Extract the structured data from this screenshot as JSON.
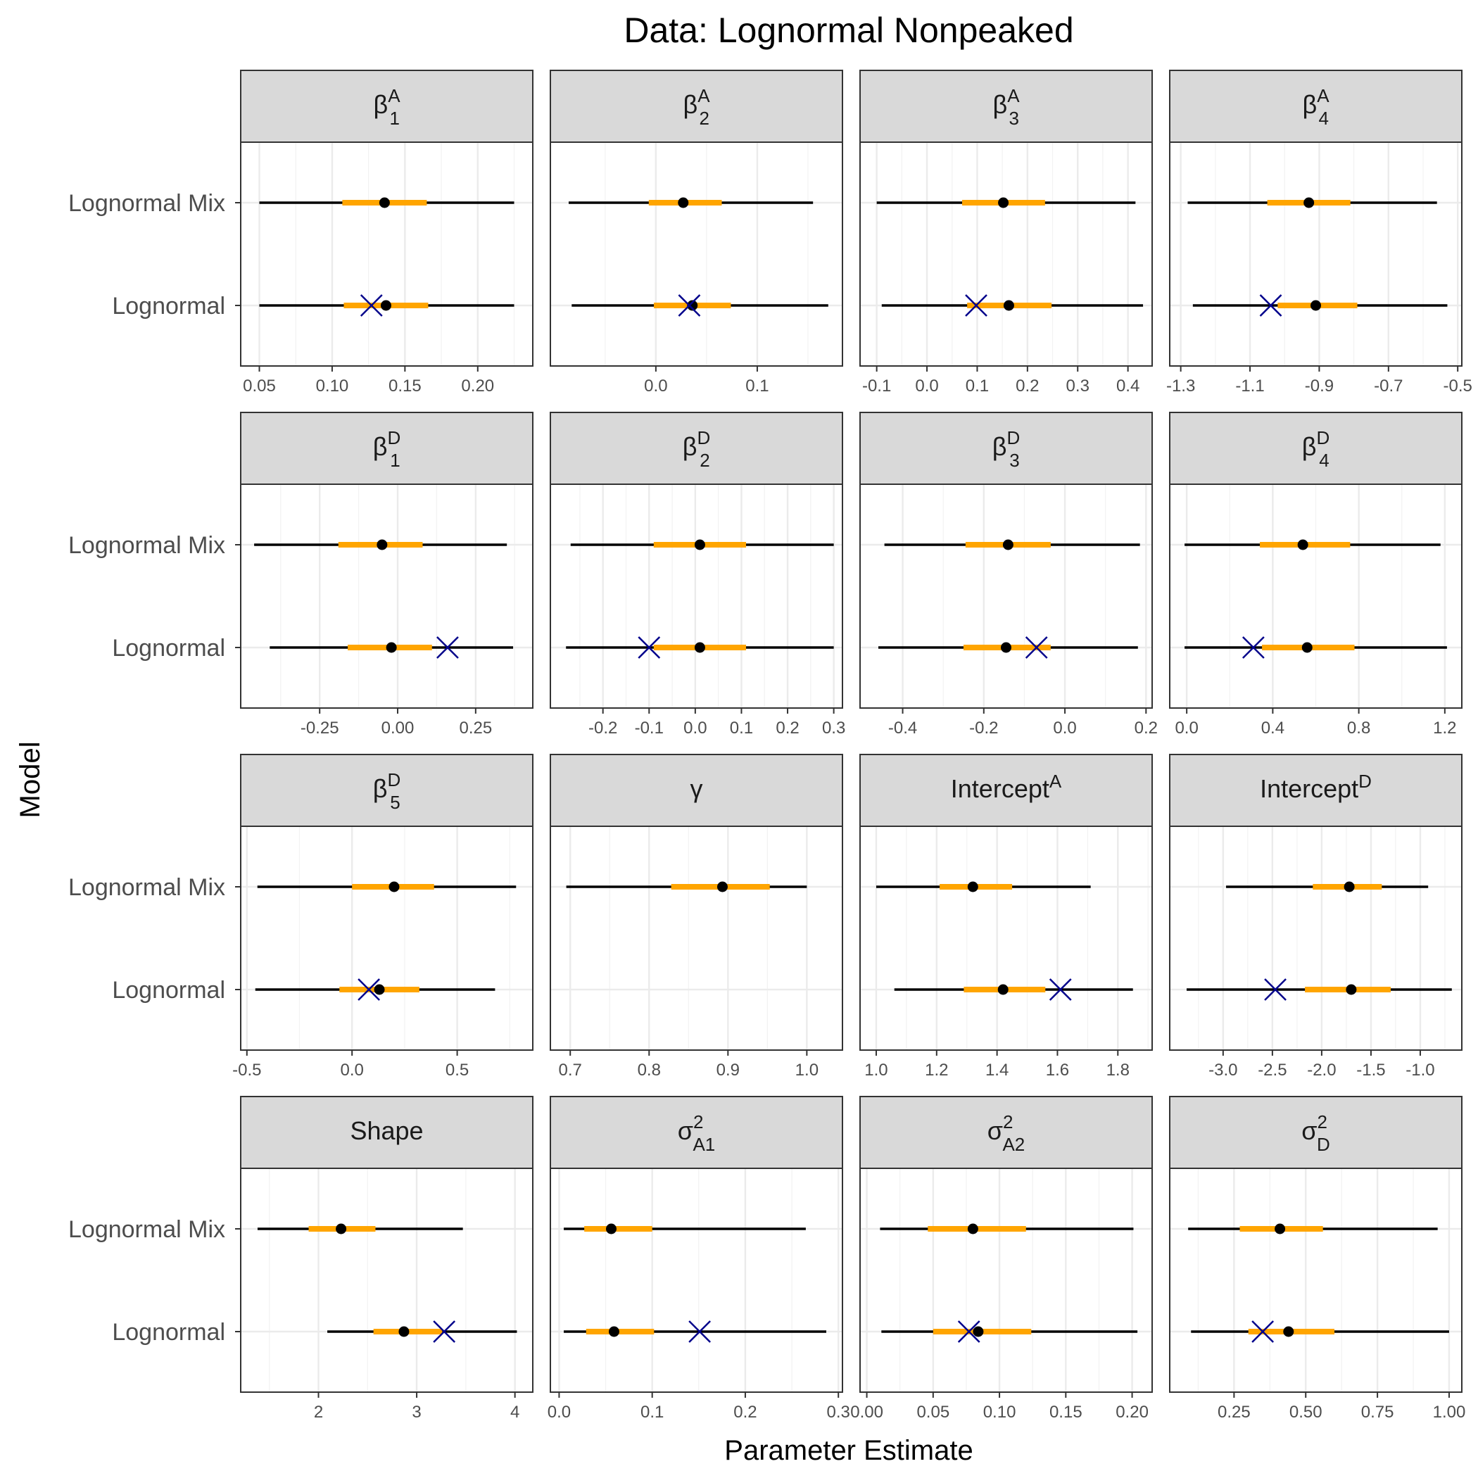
{
  "title": "Data: Lognormal Nonpeaked",
  "chart_data": {
    "type": "interval",
    "title": "Data: Lognormal Nonpeaked",
    "xlabel": "Parameter Estimate",
    "ylabel": "Model",
    "rows": [
      "Lognormal Mix",
      "Lognormal"
    ],
    "legend": "none",
    "grid": true,
    "colors": {
      "inner": "#FFA500",
      "outer": "#000000",
      "point": "#000000",
      "true_value": "#00008B",
      "strip_fill": "#D9D9D9",
      "panel_border": "#333333",
      "grid": "#EBEBEB"
    },
    "panels": [
      {
        "label": {
          "base": "β",
          "sup": "A",
          "sub": "1"
        },
        "xlim": [
          0.04,
          0.235
        ],
        "ticks": [
          0.05,
          0.1,
          0.15,
          0.2
        ],
        "tick_labels": [
          "0.05",
          "0.10",
          "0.15",
          "0.20"
        ],
        "series": [
          {
            "model": "Lognormal Mix",
            "outer": [
              0.05,
              0.225
            ],
            "inner": [
              0.107,
              0.165
            ],
            "point": 0.136,
            "true_value": null
          },
          {
            "model": "Lognormal",
            "outer": [
              0.05,
              0.225
            ],
            "inner": [
              0.108,
              0.166
            ],
            "point": 0.137,
            "true_value": 0.127
          }
        ]
      },
      {
        "label": {
          "base": "β",
          "sup": "A",
          "sub": "2"
        },
        "xlim": [
          -0.1,
          0.18
        ],
        "ticks": [
          0.0,
          0.1
        ],
        "tick_labels": [
          "0.0",
          "0.1"
        ],
        "series": [
          {
            "model": "Lognormal Mix",
            "outer": [
              -0.086,
              0.155
            ],
            "inner": [
              -0.007,
              0.065
            ],
            "point": 0.027,
            "true_value": null
          },
          {
            "model": "Lognormal",
            "outer": [
              -0.083,
              0.17
            ],
            "inner": [
              -0.002,
              0.074
            ],
            "point": 0.036,
            "true_value": 0.033
          }
        ]
      },
      {
        "label": {
          "base": "β",
          "sup": "A",
          "sub": "3"
        },
        "xlim": [
          -0.125,
          0.44
        ],
        "ticks": [
          -0.1,
          0.0,
          0.1,
          0.2,
          0.3,
          0.4
        ],
        "tick_labels": [
          "-0.1",
          "0.0",
          "0.1",
          "0.2",
          "0.3",
          "0.4"
        ],
        "series": [
          {
            "model": "Lognormal Mix",
            "outer": [
              -0.1,
              0.415
            ],
            "inner": [
              0.07,
              0.235
            ],
            "point": 0.152,
            "true_value": null
          },
          {
            "model": "Lognormal",
            "outer": [
              -0.09,
              0.43
            ],
            "inner": [
              0.08,
              0.248
            ],
            "point": 0.163,
            "true_value": 0.098
          }
        ]
      },
      {
        "label": {
          "base": "β",
          "sup": "A",
          "sub": "4"
        },
        "xlim": [
          -1.32,
          -0.5
        ],
        "ticks": [
          -1.3,
          -1.1,
          -0.9,
          -0.7,
          -0.5
        ],
        "tick_labels": [
          "-1.3",
          "-1.1",
          "-0.9",
          "-0.7",
          "-0.5"
        ],
        "series": [
          {
            "model": "Lognormal Mix",
            "outer": [
              -1.28,
              -0.56
            ],
            "inner": [
              -1.05,
              -0.81
            ],
            "point": -0.93,
            "true_value": null
          },
          {
            "model": "Lognormal",
            "outer": [
              -1.265,
              -0.53
            ],
            "inner": [
              -1.02,
              -0.79
            ],
            "point": -0.91,
            "true_value": -1.04
          }
        ]
      },
      {
        "label": {
          "base": "β",
          "sup": "D",
          "sub": "1"
        },
        "xlim": [
          -0.49,
          0.42
        ],
        "ticks": [
          -0.25,
          0.0,
          0.25
        ],
        "tick_labels": [
          "-0.25",
          "0.00",
          "0.25"
        ],
        "series": [
          {
            "model": "Lognormal Mix",
            "outer": [
              -0.46,
              0.35
            ],
            "inner": [
              -0.19,
              0.08
            ],
            "point": -0.05,
            "true_value": null
          },
          {
            "model": "Lognormal",
            "outer": [
              -0.41,
              0.37
            ],
            "inner": [
              -0.16,
              0.11
            ],
            "point": -0.02,
            "true_value": 0.16
          }
        ]
      },
      {
        "label": {
          "base": "β",
          "sup": "D",
          "sub": "2"
        },
        "xlim": [
          -0.305,
          0.31
        ],
        "ticks": [
          -0.2,
          -0.1,
          0.0,
          0.1,
          0.2,
          0.3
        ],
        "tick_labels": [
          "-0.2",
          "-0.1",
          "0.0",
          "0.1",
          "0.2",
          "0.3"
        ],
        "series": [
          {
            "model": "Lognormal Mix",
            "outer": [
              -0.27,
              0.3
            ],
            "inner": [
              -0.09,
              0.11
            ],
            "point": 0.01,
            "true_value": null
          },
          {
            "model": "Lognormal",
            "outer": [
              -0.28,
              0.3
            ],
            "inner": [
              -0.09,
              0.11
            ],
            "point": 0.01,
            "true_value": -0.1
          }
        ]
      },
      {
        "label": {
          "base": "β",
          "sup": "D",
          "sub": "3"
        },
        "xlim": [
          -0.495,
          0.205
        ],
        "ticks": [
          -0.4,
          -0.2,
          0.0,
          0.2
        ],
        "tick_labels": [
          "-0.4",
          "-0.2",
          "0.0",
          "0.2"
        ],
        "series": [
          {
            "model": "Lognormal Mix",
            "outer": [
              -0.445,
              0.185
            ],
            "inner": [
              -0.245,
              -0.035
            ],
            "point": -0.14,
            "true_value": null
          },
          {
            "model": "Lognormal",
            "outer": [
              -0.46,
              0.18
            ],
            "inner": [
              -0.25,
              -0.035
            ],
            "point": -0.145,
            "true_value": -0.07
          }
        ]
      },
      {
        "label": {
          "base": "β",
          "sup": "D",
          "sub": "4"
        },
        "xlim": [
          -0.06,
          1.26
        ],
        "ticks": [
          0.0,
          0.4,
          0.8,
          1.2
        ],
        "tick_labels": [
          "0.0",
          "0.4",
          "0.8",
          "1.2"
        ],
        "series": [
          {
            "model": "Lognormal Mix",
            "outer": [
              -0.01,
              1.18
            ],
            "inner": [
              0.34,
              0.76
            ],
            "point": 0.54,
            "true_value": null
          },
          {
            "model": "Lognormal",
            "outer": [
              -0.01,
              1.21
            ],
            "inner": [
              0.35,
              0.78
            ],
            "point": 0.56,
            "true_value": 0.31
          }
        ]
      },
      {
        "label": {
          "base": "β",
          "sup": "D",
          "sub": "5"
        },
        "xlim": [
          -0.51,
          0.84
        ],
        "ticks": [
          -0.5,
          0.0,
          0.5
        ],
        "tick_labels": [
          "-0.5",
          "0.0",
          "0.5"
        ],
        "series": [
          {
            "model": "Lognormal Mix",
            "outer": [
              -0.45,
              0.78
            ],
            "inner": [
              0.0,
              0.39
            ],
            "point": 0.2,
            "true_value": null
          },
          {
            "model": "Lognormal",
            "outer": [
              -0.46,
              0.68
            ],
            "inner": [
              -0.06,
              0.32
            ],
            "point": 0.13,
            "true_value": 0.08
          }
        ]
      },
      {
        "label": {
          "base": "γ",
          "sup": "",
          "sub": ""
        },
        "xlim": [
          0.68,
          1.04
        ],
        "ticks": [
          0.7,
          0.8,
          0.9,
          1.0
        ],
        "tick_labels": [
          "0.7",
          "0.8",
          "0.9",
          "1.0"
        ],
        "series": [
          {
            "model": "Lognormal Mix",
            "outer": [
              0.695,
              1.0
            ],
            "inner": [
              0.828,
              0.953
            ],
            "point": 0.893,
            "true_value": null
          },
          {
            "model": "Lognormal",
            "outer": null,
            "inner": null,
            "point": null,
            "true_value": null
          }
        ]
      },
      {
        "label": {
          "base": "Intercept",
          "sup": "A",
          "sub": ""
        },
        "xlim": [
          0.96,
          1.9
        ],
        "ticks": [
          1.0,
          1.2,
          1.4,
          1.6,
          1.8
        ],
        "tick_labels": [
          "1.0",
          "1.2",
          "1.4",
          "1.6",
          "1.8"
        ],
        "series": [
          {
            "model": "Lognormal Mix",
            "outer": [
              1.0,
              1.71
            ],
            "inner": [
              1.21,
              1.45
            ],
            "point": 1.32,
            "true_value": null
          },
          {
            "model": "Lognormal",
            "outer": [
              1.06,
              1.85
            ],
            "inner": [
              1.29,
              1.56
            ],
            "point": 1.42,
            "true_value": 1.61
          }
        ]
      },
      {
        "label": {
          "base": "Intercept",
          "sup": "D",
          "sub": ""
        },
        "xlim": [
          -3.5,
          -0.62
        ],
        "ticks": [
          -3.0,
          -2.5,
          -2.0,
          -1.5,
          -1.0
        ],
        "tick_labels": [
          "-3.0",
          "-2.5",
          "-2.0",
          "-1.5",
          "-1.0"
        ],
        "series": [
          {
            "model": "Lognormal Mix",
            "outer": [
              -2.97,
              -0.92
            ],
            "inner": [
              -2.09,
              -1.39
            ],
            "point": -1.72,
            "true_value": null
          },
          {
            "model": "Lognormal",
            "outer": [
              -3.37,
              -0.68
            ],
            "inner": [
              -2.17,
              -1.3
            ],
            "point": -1.7,
            "true_value": -2.47
          }
        ]
      },
      {
        "label": {
          "base": "Shape",
          "sup": "",
          "sub": ""
        },
        "xlim": [
          1.25,
          4.14
        ],
        "ticks": [
          2,
          3,
          4
        ],
        "tick_labels": [
          "2",
          "3",
          "4"
        ],
        "series": [
          {
            "model": "Lognormal Mix",
            "outer": [
              1.38,
              3.47
            ],
            "inner": [
              1.9,
              2.58
            ],
            "point": 2.23,
            "true_value": null
          },
          {
            "model": "Lognormal",
            "outer": [
              2.09,
              4.02
            ],
            "inner": [
              2.56,
              3.26
            ],
            "point": 2.87,
            "true_value": 3.28
          }
        ]
      },
      {
        "label": {
          "base": "σ",
          "sup": "2",
          "sub": "A1"
        },
        "xlim": [
          -0.005,
          0.3
        ],
        "ticks": [
          0.0,
          0.1,
          0.2,
          0.3
        ],
        "tick_labels": [
          "0.0",
          "0.1",
          "0.2",
          "0.3"
        ],
        "series": [
          {
            "model": "Lognormal Mix",
            "outer": [
              0.005,
              0.265
            ],
            "inner": [
              0.027,
              0.1
            ],
            "point": 0.056,
            "true_value": null
          },
          {
            "model": "Lognormal",
            "outer": [
              0.005,
              0.287
            ],
            "inner": [
              0.029,
              0.102
            ],
            "point": 0.059,
            "true_value": 0.151
          }
        ]
      },
      {
        "label": {
          "base": "σ",
          "sup": "2",
          "sub": "A2"
        },
        "xlim": [
          -0.002,
          0.212
        ],
        "ticks": [
          0.0,
          0.05,
          0.1,
          0.15,
          0.2
        ],
        "tick_labels": [
          "0.00",
          "0.05",
          "0.10",
          "0.15",
          "0.20"
        ],
        "series": [
          {
            "model": "Lognormal Mix",
            "outer": [
              0.01,
              0.201
            ],
            "inner": [
              0.046,
              0.12
            ],
            "point": 0.08,
            "true_value": null
          },
          {
            "model": "Lognormal",
            "outer": [
              0.011,
              0.204
            ],
            "inner": [
              0.05,
              0.124
            ],
            "point": 0.084,
            "true_value": 0.077
          }
        ]
      },
      {
        "label": {
          "base": "σ",
          "sup": "2",
          "sub": "D"
        },
        "xlim": [
          0.04,
          1.03
        ],
        "ticks": [
          0.25,
          0.5,
          0.75,
          1.0
        ],
        "tick_labels": [
          "0.25",
          "0.50",
          "0.75",
          "1.00"
        ],
        "series": [
          {
            "model": "Lognormal Mix",
            "outer": [
              0.09,
              0.96
            ],
            "inner": [
              0.27,
              0.56
            ],
            "point": 0.41,
            "true_value": null
          },
          {
            "model": "Lognormal",
            "outer": [
              0.1,
              1.0
            ],
            "inner": [
              0.3,
              0.6
            ],
            "point": 0.44,
            "true_value": 0.35
          }
        ]
      }
    ]
  }
}
